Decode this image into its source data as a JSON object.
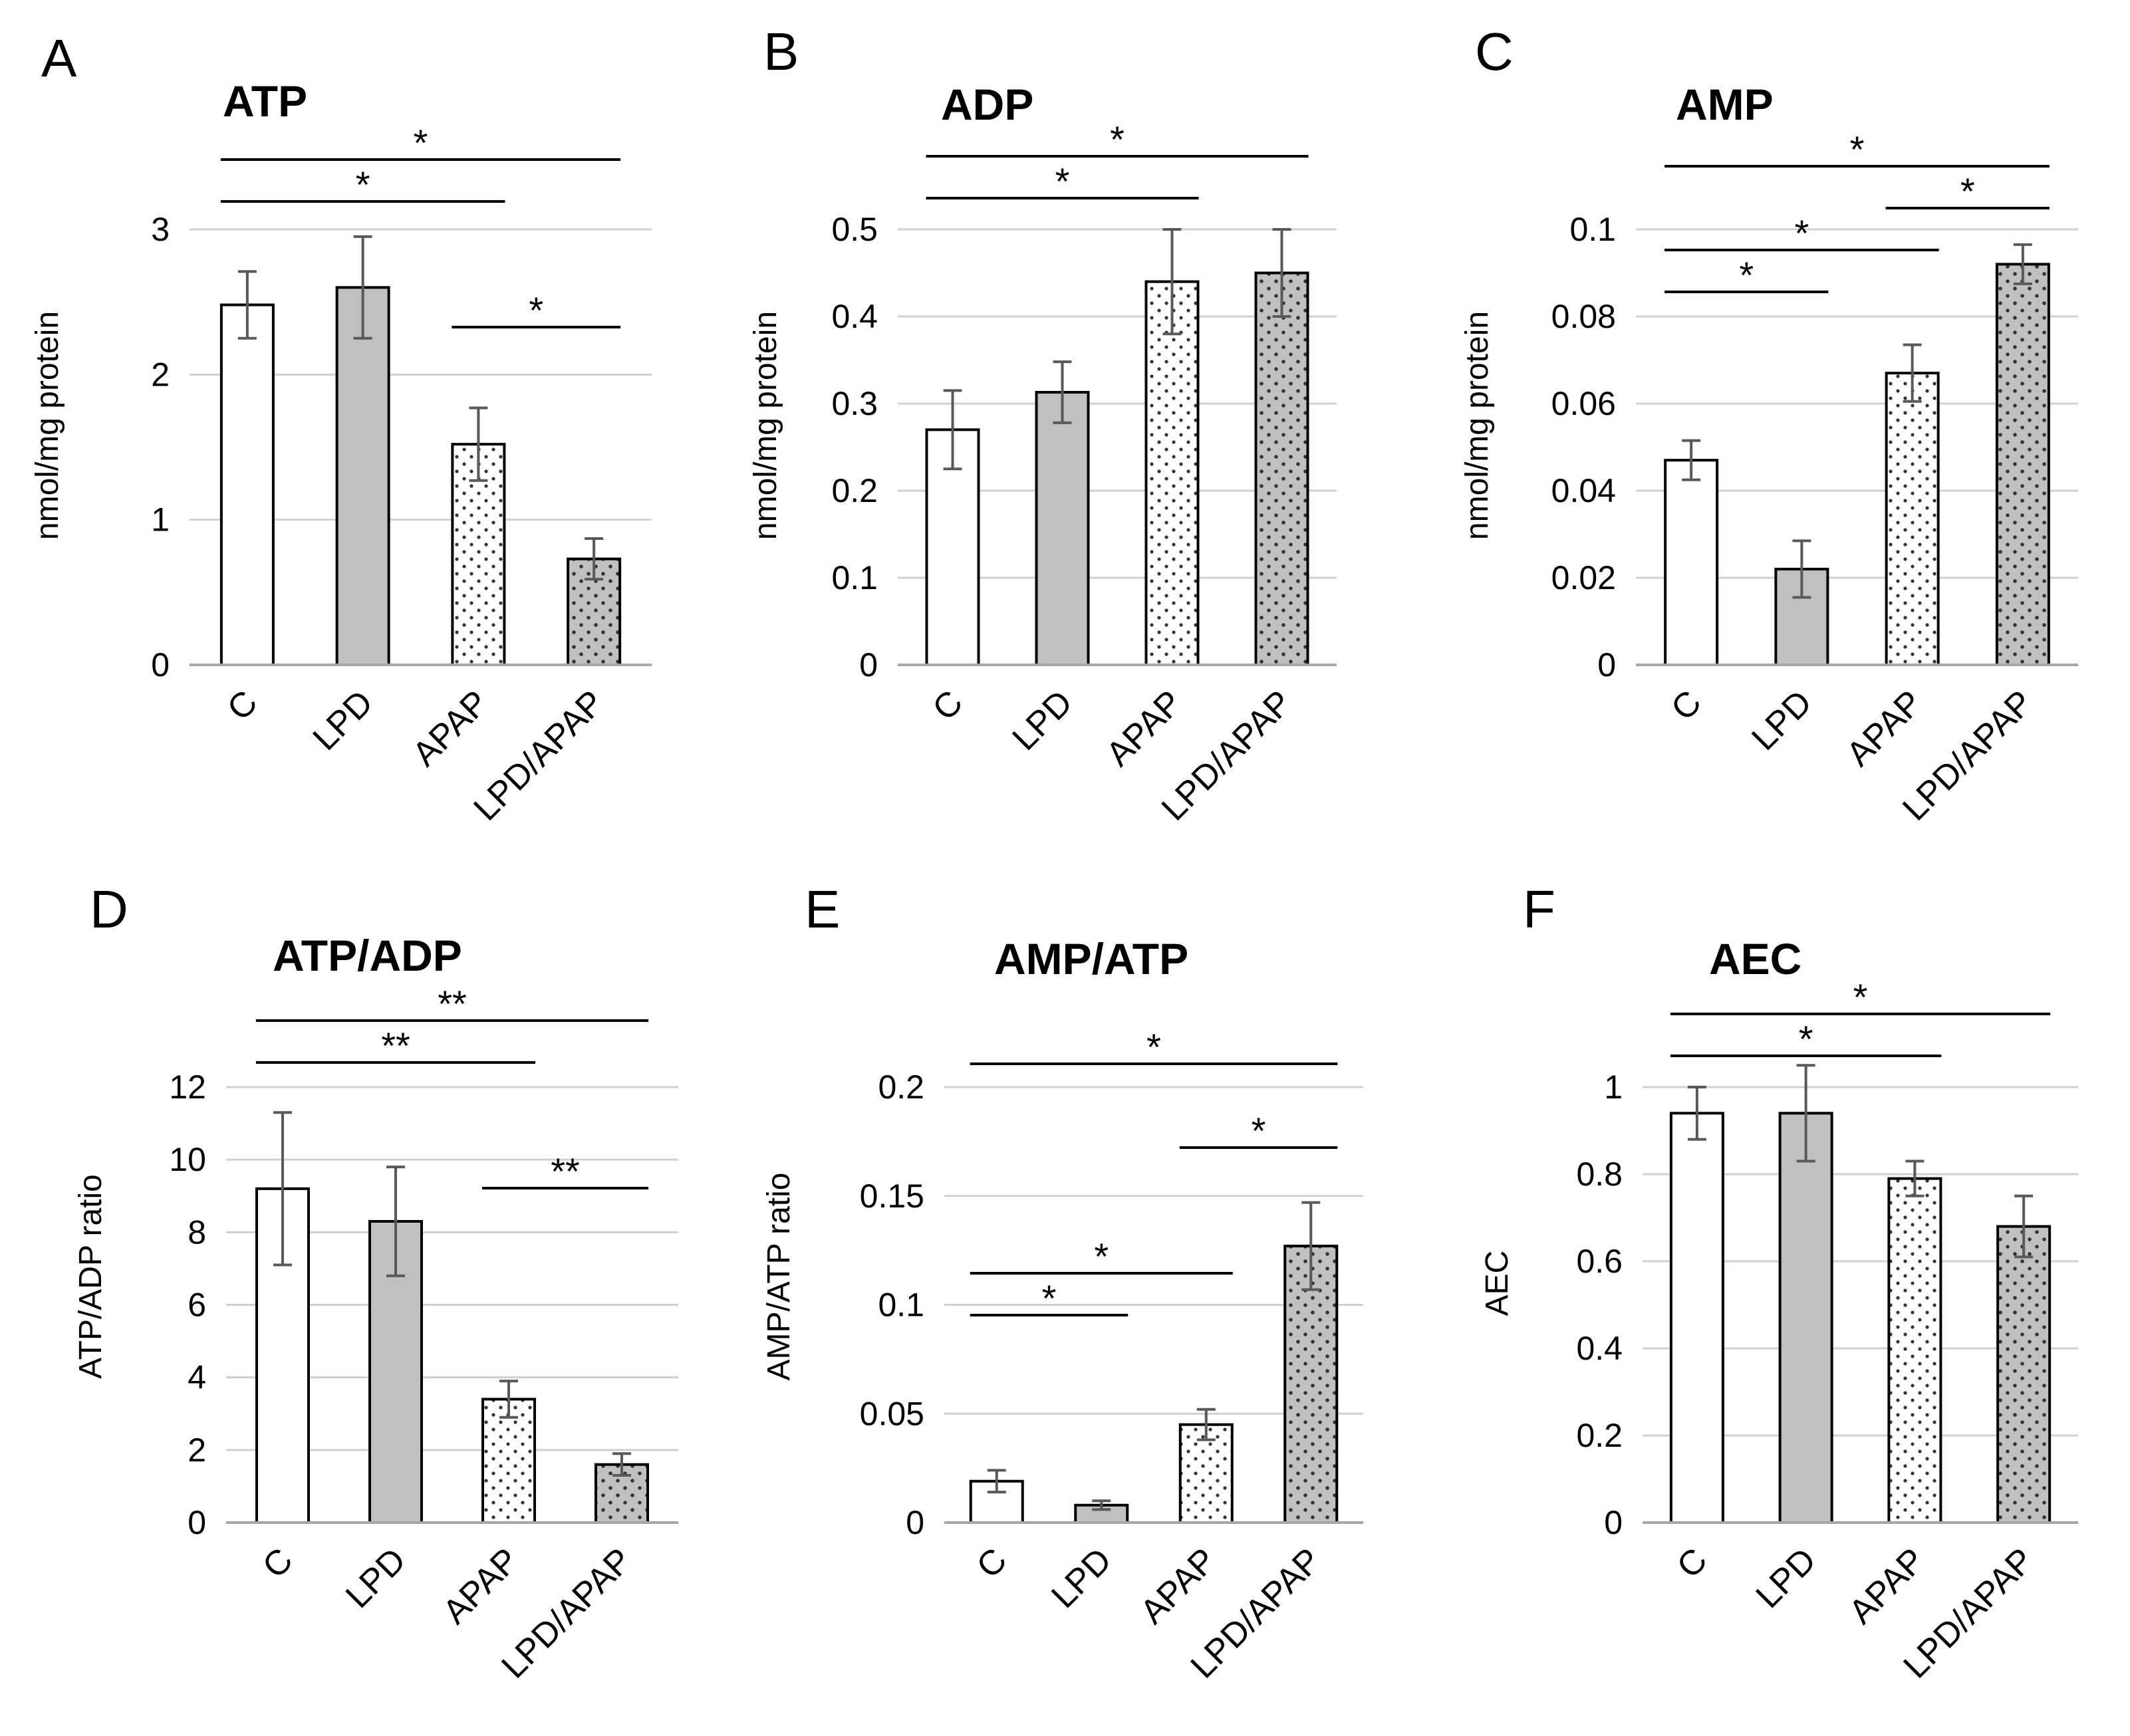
{
  "colors": {
    "white_bar": "#ffffff",
    "gray_bar": "#c0c0c0",
    "outline": "#000000",
    "gridline": "#d0d0d0",
    "axis": "#a6a6a6",
    "error_bar": "#595959"
  },
  "chart_data": [
    {
      "panel": "A",
      "type": "bar",
      "title": "ATP",
      "ylabel": "nmol/mg protein",
      "xlabel": "",
      "ylim": [
        0,
        3
      ],
      "yticks": [
        0,
        1,
        2,
        3
      ],
      "ytick_labels": [
        "0",
        "1",
        "2",
        "3"
      ],
      "categories": [
        "C",
        "LPD",
        "APAP",
        "LPD/APAP"
      ],
      "values": [
        2.48,
        2.6,
        1.52,
        0.73
      ],
      "errors": [
        0.23,
        0.35,
        0.25,
        0.14
      ],
      "patterns": [
        "white",
        "gray",
        "white-dots",
        "gray-dots"
      ],
      "significance": [
        {
          "from": 0,
          "to": 3,
          "label": "*",
          "level": 0
        },
        {
          "from": 0,
          "to": 2,
          "label": "*",
          "level": 1
        },
        {
          "from": 2,
          "to": 3,
          "label": "*",
          "level": 4
        }
      ]
    },
    {
      "panel": "B",
      "type": "bar",
      "title": "ADP",
      "ylabel": "nmol/mg protein",
      "xlabel": "",
      "ylim": [
        0,
        0.5
      ],
      "yticks": [
        0,
        0.1,
        0.2,
        0.3,
        0.4,
        0.5
      ],
      "ytick_labels": [
        "0",
        "0.1",
        "0.2",
        "0.3",
        "0.4",
        "0.5"
      ],
      "categories": [
        "C",
        "LPD",
        "APAP",
        "LPD/APAP"
      ],
      "values": [
        0.27,
        0.313,
        0.44,
        0.45
      ],
      "errors": [
        0.045,
        0.035,
        0.06,
        0.05
      ],
      "patterns": [
        "white",
        "gray",
        "white-dots",
        "gray-dots"
      ],
      "significance": [
        {
          "from": 0,
          "to": 3,
          "label": "*",
          "level": 0
        },
        {
          "from": 0,
          "to": 2,
          "label": "*",
          "level": 1
        }
      ]
    },
    {
      "panel": "C",
      "type": "bar",
      "title": "AMP",
      "ylabel": "nmol/mg protein",
      "xlabel": "",
      "ylim": [
        0,
        0.1
      ],
      "yticks": [
        0,
        0.02,
        0.04,
        0.06,
        0.08,
        0.1
      ],
      "ytick_labels": [
        "0",
        "0.02",
        "0.04",
        "0.06",
        "0.08",
        "0.1"
      ],
      "categories": [
        "C",
        "LPD",
        "APAP",
        "LPD/APAP"
      ],
      "values": [
        0.047,
        0.022,
        0.067,
        0.092
      ],
      "errors": [
        0.0045,
        0.0065,
        0.0065,
        0.0045
      ],
      "patterns": [
        "white",
        "gray",
        "white-dots",
        "gray-dots"
      ],
      "significance": [
        {
          "from": 0,
          "to": 3,
          "label": "*",
          "level": 0
        },
        {
          "from": 2,
          "to": 3,
          "label": "*",
          "level": 1
        },
        {
          "from": 0,
          "to": 2,
          "label": "*",
          "level": 2
        },
        {
          "from": 0,
          "to": 1,
          "label": "*",
          "level": 3
        }
      ]
    },
    {
      "panel": "D",
      "type": "bar",
      "title": "ATP/ADP",
      "ylabel": "ATP/ADP ratio",
      "xlabel": "",
      "ylim": [
        0,
        12
      ],
      "yticks": [
        0,
        2,
        4,
        6,
        8,
        10,
        12
      ],
      "ytick_labels": [
        "0",
        "2",
        "4",
        "6",
        "8",
        "10",
        "12"
      ],
      "categories": [
        "C",
        "LPD",
        "APAP",
        "LPD/APAP"
      ],
      "values": [
        9.2,
        8.3,
        3.4,
        1.6
      ],
      "errors": [
        2.1,
        1.5,
        0.5,
        0.3
      ],
      "patterns": [
        "white",
        "gray",
        "white-dots",
        "gray-dots"
      ],
      "significance": [
        {
          "from": 0,
          "to": 3,
          "label": "**",
          "level": 0
        },
        {
          "from": 0,
          "to": 2,
          "label": "**",
          "level": 1
        },
        {
          "from": 2,
          "to": 3,
          "label": "**",
          "level": 4
        }
      ]
    },
    {
      "panel": "E",
      "type": "bar",
      "title": "AMP/ATP",
      "ylabel": "AMP/ATP ratio",
      "xlabel": "",
      "ylim": [
        0,
        0.2
      ],
      "yticks": [
        0,
        0.05,
        0.1,
        0.15,
        0.2
      ],
      "ytick_labels": [
        "0",
        "0.05",
        "0.1",
        "0.15",
        "0.2"
      ],
      "categories": [
        "C",
        "LPD",
        "APAP",
        "LPD/APAP"
      ],
      "values": [
        0.019,
        0.008,
        0.045,
        0.127
      ],
      "errors": [
        0.005,
        0.002,
        0.007,
        0.02
      ],
      "patterns": [
        "white",
        "gray",
        "white-dots",
        "gray-dots"
      ],
      "significance": [
        {
          "from": 0,
          "to": 3,
          "label": "*",
          "level": 0
        },
        {
          "from": 2,
          "to": 3,
          "label": "*",
          "level": 2
        },
        {
          "from": 0,
          "to": 2,
          "label": "*",
          "level": 5
        },
        {
          "from": 0,
          "to": 1,
          "label": "*",
          "level": 6
        }
      ]
    },
    {
      "panel": "F",
      "type": "bar",
      "title": "AEC",
      "ylabel": "AEC",
      "xlabel": "",
      "ylim": [
        0,
        1
      ],
      "yticks": [
        0,
        0.2,
        0.4,
        0.6,
        0.8,
        1
      ],
      "ytick_labels": [
        "0",
        "0.2",
        "0.4",
        "0.6",
        "0.8",
        "1"
      ],
      "categories": [
        "C",
        "LPD",
        "APAP",
        "LPD/APAP"
      ],
      "values": [
        0.94,
        0.94,
        0.79,
        0.68
      ],
      "errors": [
        0.06,
        0.11,
        0.04,
        0.07
      ],
      "patterns": [
        "white",
        "gray",
        "white-dots",
        "gray-dots"
      ],
      "significance": [
        {
          "from": 0,
          "to": 3,
          "label": "*",
          "level": 0
        },
        {
          "from": 0,
          "to": 2,
          "label": "*",
          "level": 1
        }
      ]
    }
  ]
}
